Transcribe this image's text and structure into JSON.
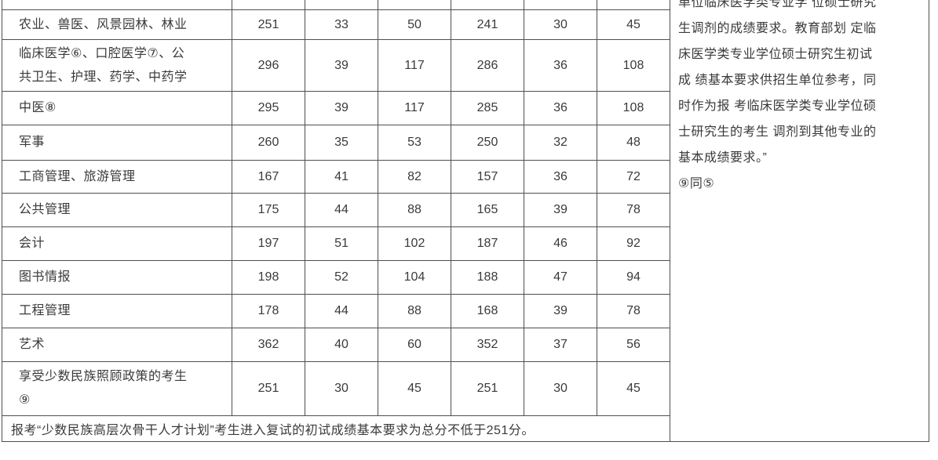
{
  "table": {
    "rows": [
      {
        "label": "农业、兽医、风景园林、林业",
        "values": [
          "251",
          "33",
          "50",
          "241",
          "30",
          "45"
        ]
      },
      {
        "label": "临床医学⑥、口腔医学⑦、公\n共卫生、护理、药学、中药学",
        "values": [
          "296",
          "39",
          "117",
          "286",
          "36",
          "108"
        ]
      },
      {
        "label": "中医⑧",
        "values": [
          "295",
          "39",
          "117",
          "285",
          "36",
          "108"
        ]
      },
      {
        "label": "军事",
        "values": [
          "260",
          "35",
          "53",
          "250",
          "32",
          "48"
        ]
      },
      {
        "label": "工商管理、旅游管理",
        "values": [
          "167",
          "41",
          "82",
          "157",
          "36",
          "72"
        ]
      },
      {
        "label": "公共管理",
        "values": [
          "175",
          "44",
          "88",
          "165",
          "39",
          "78"
        ]
      },
      {
        "label": "会计",
        "values": [
          "197",
          "51",
          "102",
          "187",
          "46",
          "92"
        ]
      },
      {
        "label": "图书情报",
        "values": [
          "198",
          "52",
          "104",
          "188",
          "47",
          "94"
        ]
      },
      {
        "label": "工程管理",
        "values": [
          "178",
          "44",
          "88",
          "168",
          "39",
          "78"
        ]
      },
      {
        "label": "艺术",
        "values": [
          "362",
          "40",
          "60",
          "352",
          "37",
          "56"
        ]
      },
      {
        "label": "享受少数民族照顾政策的考生\n⑨",
        "values": [
          "251",
          "30",
          "45",
          "251",
          "30",
          "45"
        ]
      }
    ],
    "footer_note": "报考“少数民族高层次骨干人才计划”考生进入复试的初试成绩基本要求为总分不低于251分。"
  },
  "notes": {
    "text": "单位临床医学类专业学 位硕士研究\n生调剂的成绩要求。教育部划 定临\n床医学类专业学位硕士研究生初试\n成 绩基本要求供招生单位参考，同\n时作为报 考临床医学类专业学位硕\n士研究生的考生 调剂到其他专业的\n基本成绩要求。”\n⑨同⑤"
  },
  "colors": {
    "text": "#3a3a3a",
    "border": "#4f4f4f",
    "background": "#ffffff"
  }
}
